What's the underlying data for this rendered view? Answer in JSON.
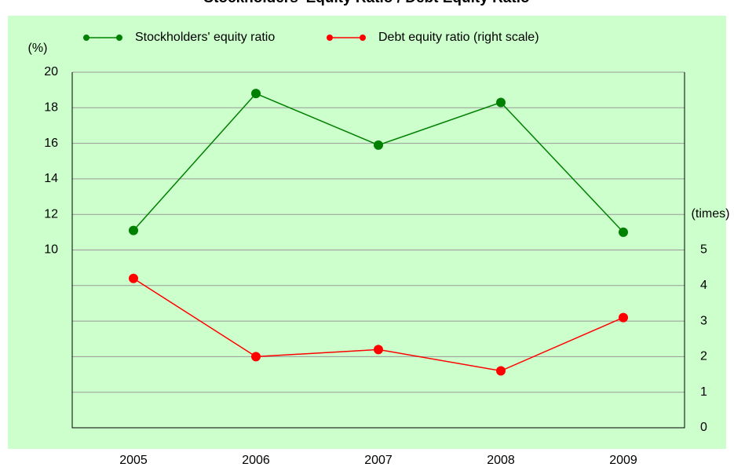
{
  "chart_data": {
    "type": "line",
    "title": "Stockholders' Equity Ratio / Debt Equity Ratio",
    "y_label": "(%)",
    "y2_label": "(times)",
    "categories": [
      "2005",
      "2006",
      "2007",
      "2008",
      "2009"
    ],
    "series": [
      {
        "name": "Stockholders' equity ratio",
        "color": "#008000",
        "values": [
          11.1,
          18.8,
          15.9,
          18.3,
          11.0
        ]
      },
      {
        "name": "Debt equity ratio  (right scale)",
        "color": "#ff0000",
        "axis": "y2",
        "values": [
          4.2,
          2.0,
          2.2,
          1.6,
          3.1
        ]
      }
    ],
    "ylim": [
      0,
      20
    ],
    "yticks": [
      10,
      12,
      14,
      16,
      18,
      20
    ],
    "y2lim": [
      0,
      10
    ],
    "y2ticks": [
      0,
      1,
      2,
      3,
      4,
      5
    ],
    "grid": true
  }
}
